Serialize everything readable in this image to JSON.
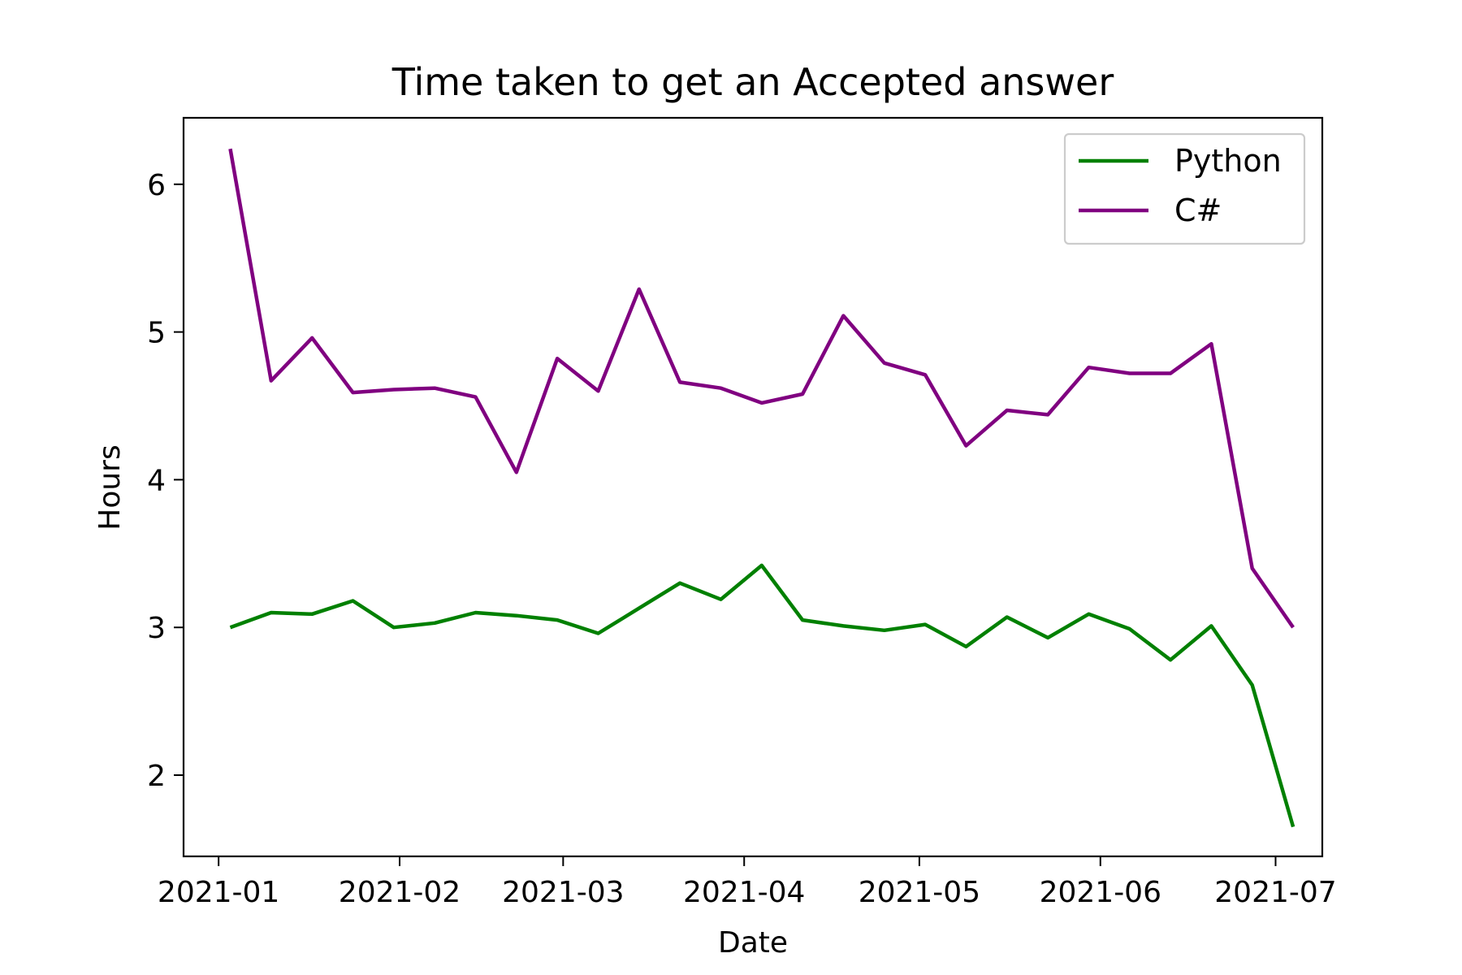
{
  "chart_data": {
    "type": "line",
    "title": "Time taken to get an Accepted answer",
    "xlabel": "Date",
    "ylabel": "Hours",
    "x_ticks": [
      "2021-01",
      "2021-02",
      "2021-03",
      "2021-04",
      "2021-05",
      "2021-06",
      "2021-07"
    ],
    "y_ticks": [
      2,
      3,
      4,
      5,
      6
    ],
    "ylim": [
      1.45,
      6.45
    ],
    "xlim": [
      "2020-12-26",
      "2021-07-09"
    ],
    "x": [
      "2021-01-03",
      "2021-01-10",
      "2021-01-17",
      "2021-01-24",
      "2021-01-31",
      "2021-02-07",
      "2021-02-14",
      "2021-02-21",
      "2021-02-28",
      "2021-03-07",
      "2021-03-14",
      "2021-03-21",
      "2021-03-28",
      "2021-04-04",
      "2021-04-11",
      "2021-04-18",
      "2021-04-25",
      "2021-05-02",
      "2021-05-09",
      "2021-05-16",
      "2021-05-23",
      "2021-05-30",
      "2021-06-06",
      "2021-06-13",
      "2021-06-20",
      "2021-06-27",
      "2021-07-04"
    ],
    "series": [
      {
        "name": "Python",
        "color": "#008000",
        "values": [
          3.0,
          3.1,
          3.09,
          3.18,
          3.0,
          3.03,
          3.1,
          3.08,
          3.05,
          2.96,
          3.13,
          3.3,
          3.19,
          3.42,
          3.05,
          3.01,
          2.98,
          3.02,
          2.87,
          3.07,
          2.93,
          3.09,
          2.99,
          2.78,
          3.01,
          2.61,
          1.65
        ]
      },
      {
        "name": "C#",
        "color": "#800080",
        "values": [
          6.24,
          4.67,
          4.96,
          4.59,
          4.61,
          4.62,
          4.56,
          4.05,
          4.82,
          4.6,
          5.29,
          4.66,
          4.62,
          4.52,
          4.58,
          5.11,
          4.79,
          4.71,
          4.23,
          4.47,
          4.44,
          4.76,
          4.72,
          4.72,
          4.92,
          3.4,
          3.0
        ]
      }
    ],
    "legend": "top-right",
    "grid": false
  }
}
